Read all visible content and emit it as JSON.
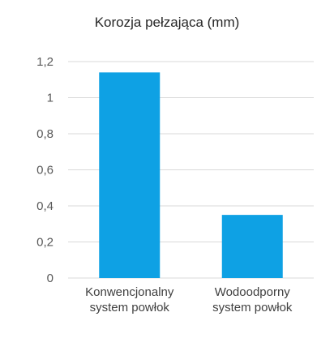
{
  "chart_data": {
    "type": "bar",
    "title": "Korozja pełzająca (mm)",
    "categories": [
      [
        "Konwencjonalny",
        "system powłok"
      ],
      [
        "Wodoodporny",
        "system powłok"
      ]
    ],
    "values": [
      1.14,
      0.35
    ],
    "ylim": [
      0,
      1.2
    ],
    "yticks": [
      0,
      0.2,
      0.4,
      0.6,
      0.8,
      1,
      1.2
    ],
    "ytick_labels": [
      "0",
      "0,2",
      "0,4",
      "0,6",
      "0,8",
      "1",
      "1,2"
    ],
    "grid": true,
    "bar_color": "#0ea1e4",
    "grid_color": "#d9d9d9"
  }
}
